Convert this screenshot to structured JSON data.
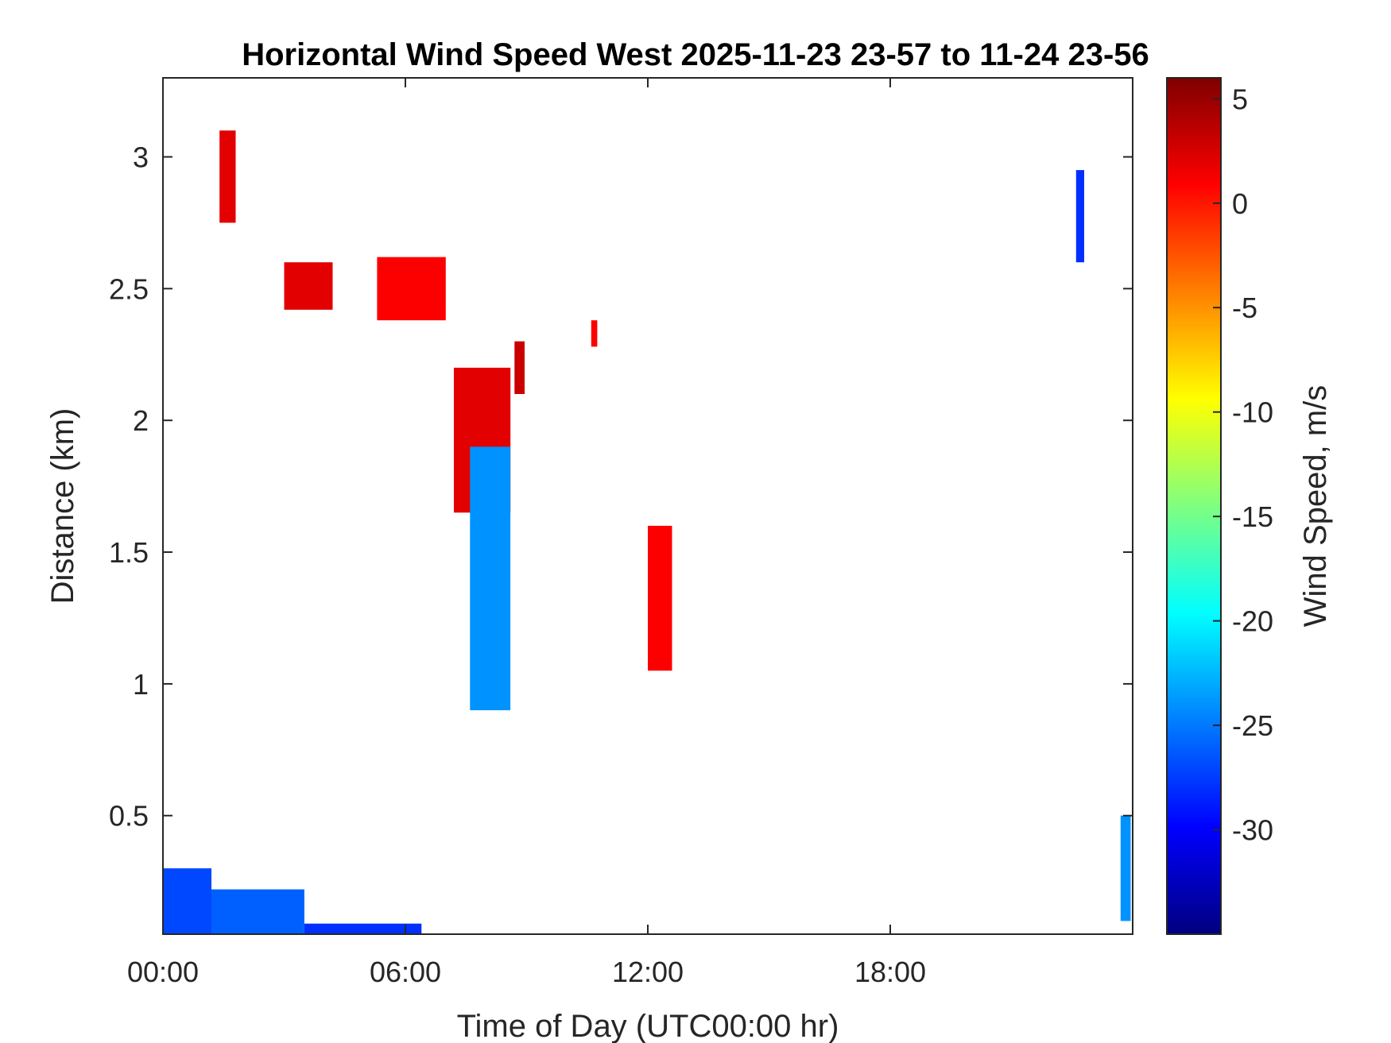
{
  "chart_data": {
    "type": "heatmap",
    "title": "Horizontal Wind Speed West 2025-11-23 23-57 to 11-24 23-56",
    "xlabel": "Time of Day (UTC00:00 hr)",
    "ylabel": "Distance (km)",
    "x_units": "hours",
    "xlim": [
      0,
      24
    ],
    "ylim": [
      0.05,
      3.3
    ],
    "x_ticks": [
      0,
      6,
      12,
      18
    ],
    "x_tick_labels": [
      "00:00",
      "06:00",
      "12:00",
      "18:00"
    ],
    "y_ticks": [
      0.5,
      1,
      1.5,
      2,
      2.5,
      3
    ],
    "y_tick_labels": [
      "0.5",
      "1",
      "1.5",
      "2",
      "2.5",
      "3"
    ],
    "colorbar": {
      "label": "Wind Speed, m/s",
      "range": [
        -35,
        6
      ],
      "ticks": [
        5,
        0,
        -5,
        -10,
        -15,
        -20,
        -25,
        -30
      ],
      "tick_labels": [
        "5",
        "0",
        "-5",
        "-10",
        "-15",
        "-20",
        "-25",
        "-30"
      ],
      "colormap": "jet"
    },
    "grid": false,
    "features": [
      {
        "t": [
          0.0,
          1.2
        ],
        "d": [
          0.05,
          0.3
        ],
        "v": -27
      },
      {
        "t": [
          1.2,
          3.5
        ],
        "d": [
          0.05,
          0.22
        ],
        "v": -26
      },
      {
        "t": [
          3.5,
          6.4
        ],
        "d": [
          0.05,
          0.09
        ],
        "v": -28
      },
      {
        "t": [
          1.4,
          1.8
        ],
        "d": [
          2.75,
          3.1
        ],
        "v": 2
      },
      {
        "t": [
          3.0,
          4.2
        ],
        "d": [
          2.42,
          2.6
        ],
        "v": 2
      },
      {
        "t": [
          5.3,
          7.0
        ],
        "d": [
          2.38,
          2.62
        ],
        "v": 1
      },
      {
        "t": [
          7.2,
          8.6
        ],
        "d": [
          1.65,
          2.2
        ],
        "v": 2
      },
      {
        "t": [
          7.6,
          8.6
        ],
        "d": [
          0.9,
          1.9
        ],
        "v": -24
      },
      {
        "t": [
          8.7,
          8.95
        ],
        "d": [
          2.1,
          2.3
        ],
        "v": 3
      },
      {
        "t": [
          10.6,
          10.75
        ],
        "d": [
          2.28,
          2.38
        ],
        "v": 1
      },
      {
        "t": [
          12.0,
          12.6
        ],
        "d": [
          1.05,
          1.6
        ],
        "v": 1
      },
      {
        "t": [
          22.6,
          22.8
        ],
        "d": [
          2.6,
          2.95
        ],
        "v": -28
      },
      {
        "t": [
          23.7,
          23.95
        ],
        "d": [
          0.1,
          0.5
        ],
        "v": -24
      }
    ]
  }
}
